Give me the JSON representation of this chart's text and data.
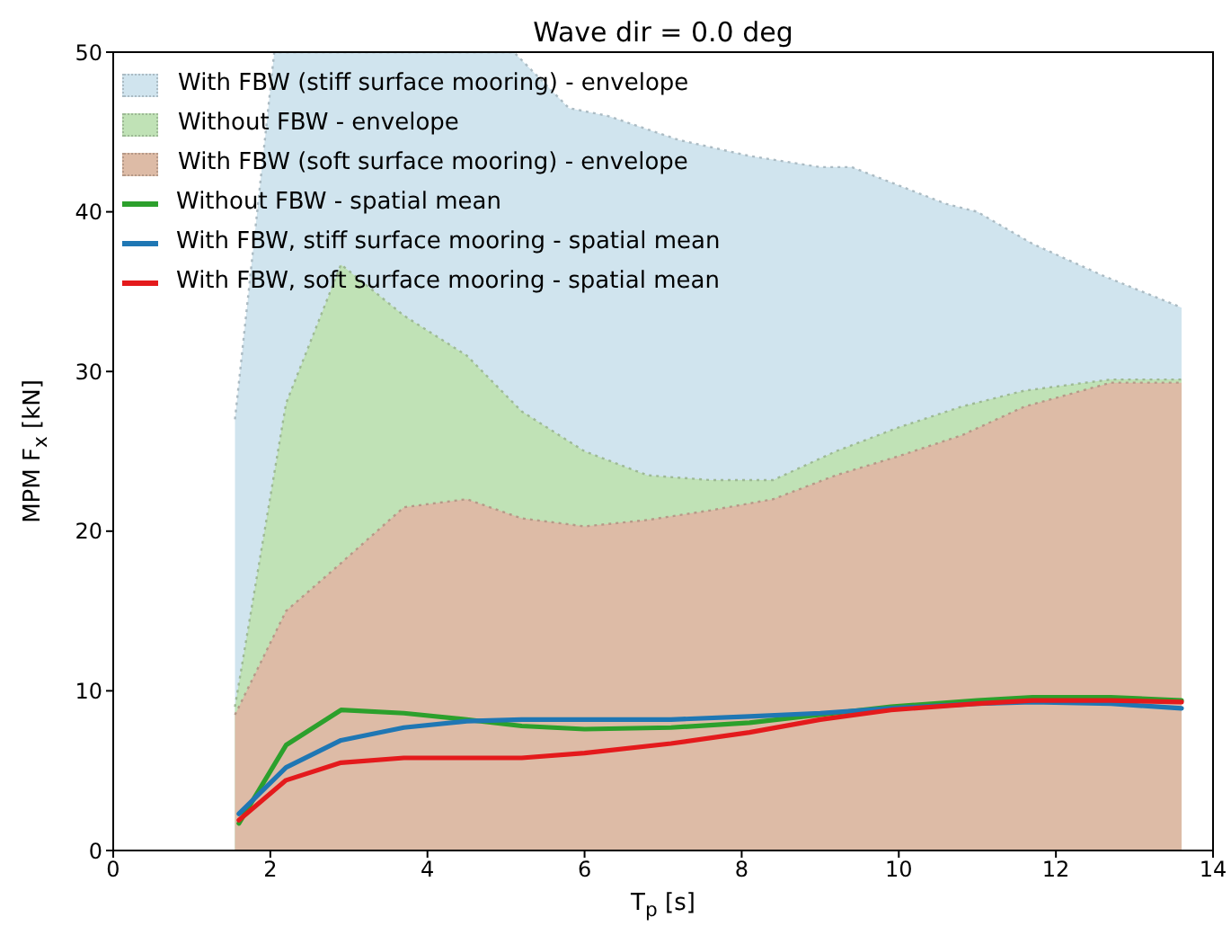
{
  "chart_data": {
    "type": "line",
    "title": "Wave dir = 0.0 deg",
    "xlabel": "T$_{p}$ [s]",
    "ylabel": "MPM F$_{x}$ [kN]",
    "xlim": [
      0,
      14
    ],
    "xticks": [
      0,
      2,
      4,
      6,
      8,
      10,
      12,
      14
    ],
    "ylim": [
      0,
      50
    ],
    "yticks": [
      0,
      10,
      20,
      30,
      40,
      50
    ],
    "legend": "top left",
    "marker": "none",
    "series": [
      {
        "name": "With FBW (stiff surface mooring) - envelope",
        "type": "area",
        "line_style": "dotted",
        "color": "#d0e4ee",
        "x": [
          1.55,
          2.05,
          5.1,
          5.8,
          6.3,
          7.2,
          8.1,
          9.0,
          9.4,
          10.6,
          11.0,
          11.7,
          12.6,
          13.6
        ],
        "values": [
          27,
          50,
          50,
          46.5,
          46,
          44.5,
          43.5,
          42.8,
          42.8,
          40.5,
          40,
          38,
          36,
          34
        ]
      },
      {
        "name": "Without FBW - envelope",
        "type": "area",
        "line_style": "dotted",
        "color": "#c0e2b6",
        "x": [
          1.55,
          2.2,
          2.9,
          3.7,
          4.5,
          5.2,
          6.0,
          6.8,
          7.6,
          8.4,
          9.2,
          10.0,
          10.8,
          11.6,
          12.7,
          13.6
        ],
        "values": [
          9,
          28,
          36.7,
          33.5,
          31,
          27.5,
          25,
          23.5,
          23.2,
          23.2,
          25,
          26.5,
          27.8,
          28.8,
          29.5,
          29.5
        ]
      },
      {
        "name": "With FBW (soft surface mooring) - envelope",
        "type": "area",
        "line_style": "dotted",
        "color": "#ddbba6",
        "x": [
          1.55,
          2.2,
          2.9,
          3.7,
          4.5,
          5.2,
          6.0,
          6.8,
          7.6,
          8.4,
          9.2,
          10.0,
          10.8,
          11.6,
          12.7,
          13.6
        ],
        "values": [
          8.5,
          15,
          18,
          21.5,
          22,
          20.8,
          20.3,
          20.7,
          21.3,
          22,
          23.5,
          24.7,
          26,
          27.8,
          29.3,
          29.3
        ]
      },
      {
        "name": "Without FBW - spatial mean",
        "type": "line",
        "line_style": "solid",
        "color": "#2ca02c",
        "x": [
          1.6,
          2.2,
          2.9,
          3.7,
          4.5,
          5.2,
          6.0,
          7.1,
          8.1,
          9.0,
          9.9,
          11.0,
          11.7,
          12.7,
          13.6
        ],
        "values": [
          1.7,
          6.6,
          8.8,
          8.6,
          8.2,
          7.8,
          7.6,
          7.7,
          8.0,
          8.5,
          9.0,
          9.4,
          9.6,
          9.6,
          9.4
        ]
      },
      {
        "name": "With FBW, stiff surface mooring - spatial mean",
        "type": "line",
        "line_style": "solid",
        "color": "#1f77b4",
        "x": [
          1.6,
          2.2,
          2.9,
          3.7,
          4.5,
          5.2,
          6.0,
          7.1,
          8.1,
          9.0,
          9.9,
          11.0,
          11.7,
          12.7,
          13.6
        ],
        "values": [
          2.3,
          5.2,
          6.9,
          7.7,
          8.1,
          8.2,
          8.2,
          8.2,
          8.4,
          8.6,
          8.9,
          9.2,
          9.3,
          9.2,
          8.9
        ]
      },
      {
        "name": "With FBW, soft surface mooring - spatial mean",
        "type": "line",
        "line_style": "solid",
        "color": "#e41a1c",
        "x": [
          1.6,
          2.2,
          2.9,
          3.7,
          4.5,
          5.2,
          6.0,
          7.1,
          8.1,
          9.0,
          9.9,
          11.0,
          11.7,
          12.7,
          13.6
        ],
        "values": [
          1.9,
          4.4,
          5.5,
          5.8,
          5.8,
          5.8,
          6.1,
          6.7,
          7.4,
          8.2,
          8.8,
          9.2,
          9.4,
          9.4,
          9.3
        ]
      }
    ]
  }
}
